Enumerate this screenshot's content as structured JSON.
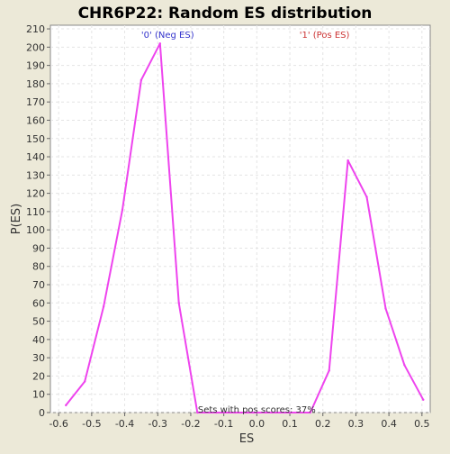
{
  "chart_data": {
    "type": "line",
    "title": "CHR6P22: Random ES distribution",
    "xlabel": "ES",
    "ylabel": "P(ES)",
    "xlim": [
      -0.625,
      0.525
    ],
    "ylim": [
      0,
      212
    ],
    "x_ticks": [
      -0.6,
      -0.5,
      -0.4,
      -0.3,
      -0.2,
      -0.1,
      0.0,
      0.1,
      0.2,
      0.3,
      0.4,
      0.5
    ],
    "x_tick_labels": [
      "-0.6",
      "-0.5",
      "-0.4",
      "-0.3",
      "-0.2",
      "-0.1",
      "0.0",
      "0.1",
      "0.2",
      "0.3",
      "0.4",
      "0.5"
    ],
    "y_ticks": [
      0,
      10,
      20,
      30,
      40,
      50,
      60,
      70,
      80,
      90,
      100,
      110,
      120,
      130,
      140,
      150,
      160,
      170,
      180,
      190,
      200,
      210
    ],
    "grid": true,
    "series": [
      {
        "color": "#ee44ee",
        "x": [
          -0.578,
          -0.521,
          -0.464,
          -0.407,
          -0.35,
          -0.293,
          -0.236,
          -0.18,
          -0.123,
          -0.066,
          -0.009,
          0.048,
          0.105,
          0.162,
          0.219,
          0.276,
          0.333,
          0.39,
          0.447,
          0.504
        ],
        "y": [
          4,
          17,
          58,
          111,
          182,
          202,
          60,
          0,
          0,
          0,
          0,
          0,
          0,
          0,
          23,
          138,
          118,
          57,
          26,
          7
        ]
      }
    ],
    "annotations": [
      {
        "text": "'0' (Neg ES)",
        "x": -0.27,
        "y": 207,
        "color": "#3333cc"
      },
      {
        "text": "'1' (Pos ES)",
        "x": 0.205,
        "y": 207,
        "color": "#cc3333"
      },
      {
        "text": "Sets with pos scores: 37%",
        "x": 0.0,
        "y": 2,
        "color": "#333333"
      }
    ]
  }
}
